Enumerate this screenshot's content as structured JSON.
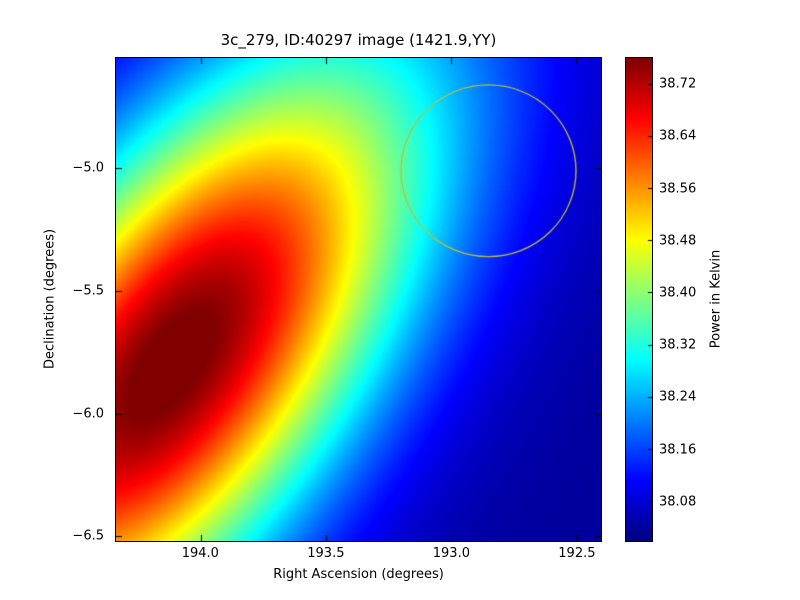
{
  "chart_data": {
    "type": "heatmap",
    "title": "3c_279, ID:40297 image (1421.9,YY)",
    "xlabel": "Right Ascension (degrees)",
    "ylabel": "Declination (degrees)",
    "grid": false,
    "colormap": "jet",
    "x_axis": {
      "range": [
        194.34,
        192.4
      ],
      "reversed": true,
      "tick_values": [
        194.0,
        193.5,
        193.0,
        192.5
      ],
      "tick_labels": [
        "194.0",
        "193.5",
        "193.0",
        "192.5"
      ]
    },
    "y_axis": {
      "range": [
        -6.52,
        -4.55
      ],
      "tick_values": [
        -5.0,
        -5.5,
        -6.0,
        -6.5
      ],
      "tick_labels": [
        "−5.0",
        "−5.5",
        "−6.0",
        "−6.5"
      ]
    },
    "colorbar": {
      "label": "Power in Kelvin",
      "range": [
        38.02,
        38.76
      ],
      "tick_values": [
        38.72,
        38.64,
        38.56,
        38.48,
        38.4,
        38.32,
        38.24,
        38.16,
        38.08
      ],
      "tick_labels": [
        "38.72",
        "38.64",
        "38.56",
        "38.48",
        "38.40",
        "38.32",
        "38.24",
        "38.16",
        "38.08"
      ]
    },
    "source_model": {
      "type": "gaussian",
      "center_ra": 194.12,
      "center_dec": -5.8,
      "sigma_major": 1.05,
      "sigma_minor": 0.48,
      "angle_deg": -55,
      "peak_value": 38.78,
      "background_value": 38.04
    },
    "annotation_circle": {
      "center_ra": 192.85,
      "center_dec": -5.01,
      "radius_deg": 0.35,
      "color": "#bfbf30"
    }
  }
}
